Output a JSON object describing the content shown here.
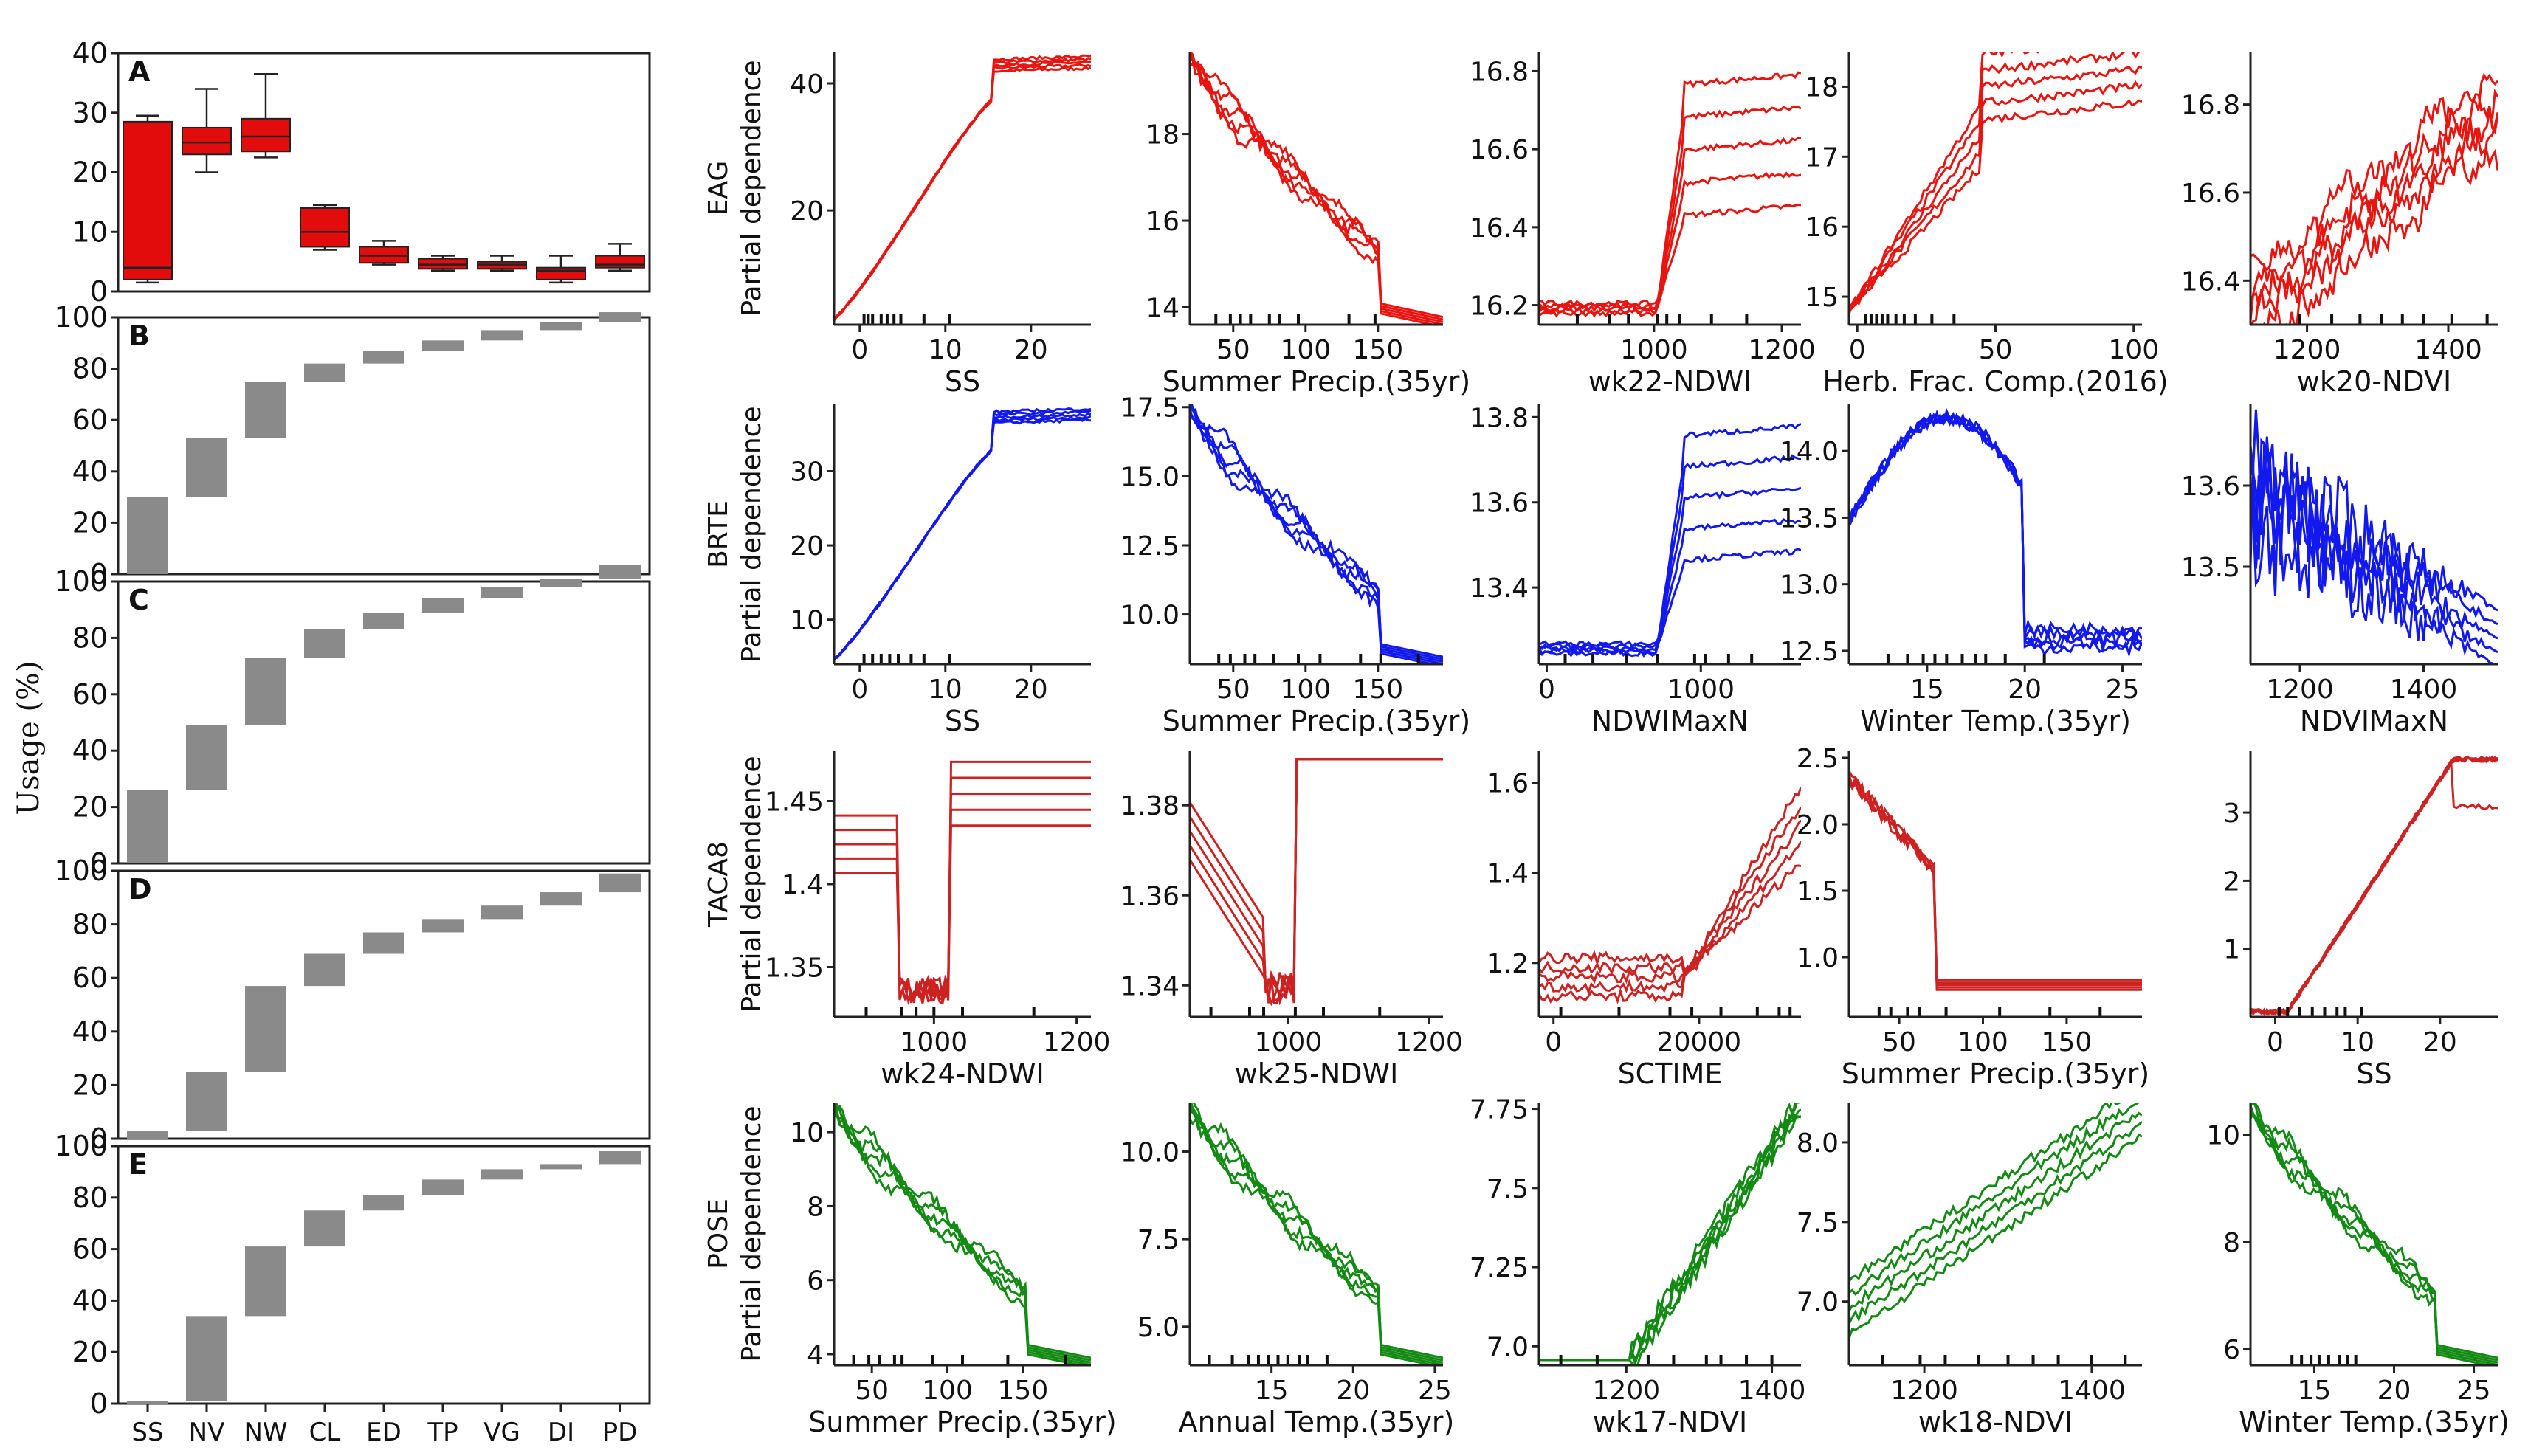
{
  "chart_data": {
    "left": {
      "ylabel": "Usage (%)",
      "categories": [
        "SS",
        "NV",
        "NW",
        "CL",
        "ED",
        "TP",
        "VG",
        "DI",
        "PD"
      ],
      "panelA": {
        "label": "A",
        "type": "box",
        "ylim": [
          0,
          40
        ],
        "yticks": [
          "0",
          "10",
          "20",
          "30",
          "40"
        ],
        "boxes": [
          {
            "cat": "SS",
            "wlo": 1.5,
            "q1": 2,
            "med": 4,
            "q3": 28.5,
            "whi": 29.5
          },
          {
            "cat": "NV",
            "wlo": 20,
            "q1": 23,
            "med": 25,
            "q3": 27.5,
            "whi": 34
          },
          {
            "cat": "NW",
            "wlo": 22.5,
            "q1": 23.5,
            "med": 26,
            "q3": 29,
            "whi": 36.5
          },
          {
            "cat": "CL",
            "wlo": 7,
            "q1": 7.5,
            "med": 10,
            "q3": 14,
            "whi": 14.5
          },
          {
            "cat": "ED",
            "wlo": 4.5,
            "q1": 4.8,
            "med": 6,
            "q3": 7.5,
            "whi": 8.5
          },
          {
            "cat": "TP",
            "wlo": 3.5,
            "q1": 3.8,
            "med": 4.5,
            "q3": 5.5,
            "whi": 6
          },
          {
            "cat": "VG",
            "wlo": 3.5,
            "q1": 3.8,
            "med": 4.5,
            "q3": 5,
            "whi": 6
          },
          {
            "cat": "DI",
            "wlo": 1.5,
            "q1": 2,
            "med": 3.5,
            "q3": 4,
            "whi": 6
          },
          {
            "cat": "PD",
            "wlo": 3.5,
            "q1": 4,
            "med": 4.5,
            "q3": 6,
            "whi": 8
          }
        ]
      },
      "waterfalls": [
        {
          "label": "B",
          "ylim": [
            0,
            100
          ],
          "yticks": [
            "0",
            "20",
            "40",
            "60",
            "80",
            "100"
          ],
          "values": [
            30,
            23,
            22,
            7,
            5,
            4,
            4,
            3,
            4
          ]
        },
        {
          "label": "C",
          "ylim": [
            0,
            100
          ],
          "yticks": [
            "0",
            "20",
            "40",
            "60",
            "80",
            "100"
          ],
          "values": [
            26,
            23,
            24,
            10,
            6,
            5,
            4,
            3,
            5
          ]
        },
        {
          "label": "D",
          "ylim": [
            0,
            100
          ],
          "yticks": [
            "0",
            "20",
            "40",
            "60",
            "80",
            "100"
          ],
          "values": [
            3,
            22,
            32,
            12,
            8,
            5,
            5,
            5,
            7
          ]
        },
        {
          "label": "E",
          "ylim": [
            0,
            100
          ],
          "yticks": [
            "0",
            "20",
            "40",
            "60",
            "80",
            "100"
          ],
          "values": [
            1,
            33,
            27,
            14,
            6,
            6,
            4,
            2,
            5
          ]
        }
      ]
    },
    "partial_dependence": {
      "rows": [
        {
          "species": "EAG",
          "ylabel": "Partial dependence",
          "color": "#e8140f"
        },
        {
          "species": "BRTE",
          "ylabel": "Partial dependence",
          "color": "#1219ee"
        },
        {
          "species": "TACA8",
          "ylabel": "Partial dependence",
          "color": "#cc2222"
        },
        {
          "species": "POSE",
          "ylabel": "Partial dependence",
          "color": "#138a13"
        }
      ],
      "panels": [
        [
          {
            "xlabel": "SS",
            "xlim": [
              -3,
              27
            ],
            "xticks": [
              0,
              10,
              20
            ],
            "ylim": [
              2,
              45
            ],
            "yticks": [
              20,
              40
            ],
            "shape": "up_smooth",
            "rug": [
              0.5,
              1,
              1.5,
              2.5,
              3.2,
              4,
              4.8,
              7.5,
              10.5
            ]
          },
          {
            "xlabel": "Summer Precip.(35yr)",
            "xlim": [
              20,
              195
            ],
            "xticks": [
              50,
              100,
              150
            ],
            "ylim": [
              13.6,
              19.9
            ],
            "yticks": [
              14,
              16,
              18
            ],
            "shape": "down_step",
            "rug": [
              38,
              48,
              55,
              62,
              75,
              82,
              95,
              130,
              148
            ]
          },
          {
            "xlabel": "wk22-NDWI",
            "xlim": [
              820,
              1230
            ],
            "xticks": [
              1000,
              1200
            ],
            "ylim": [
              16.15,
              16.85
            ],
            "yticks": [
              16.2,
              16.4,
              16.6,
              16.8
            ],
            "shape": "jump_split",
            "rug": [
              880,
              930,
              960,
              1005,
              1020,
              1040,
              1090,
              1145
            ]
          },
          {
            "xlabel": "Herb. Frac. Comp.(2016)",
            "xlim": [
              -3,
              103
            ],
            "xticks": [
              0,
              50,
              100
            ],
            "ylim": [
              14.6,
              18.5
            ],
            "yticks": [
              15,
              16,
              17,
              18
            ],
            "shape": "up_fan",
            "rug": [
              3,
              5,
              7,
              9,
              11,
              14,
              17,
              21,
              27,
              35
            ]
          },
          {
            "xlabel": "wk20-NDVI",
            "xlim": [
              1120,
              1470
            ],
            "xticks": [
              1200,
              1400
            ],
            "ylim": [
              16.3,
              16.92
            ],
            "yticks": [
              16.4,
              16.6,
              16.8
            ],
            "shape": "up_noisy",
            "rug": [
              1190,
              1235,
              1275,
              1305,
              1335,
              1365,
              1405,
              1455
            ]
          }
        ],
        [
          {
            "xlabel": "SS",
            "xlim": [
              -3,
              27
            ],
            "xticks": [
              0,
              10,
              20
            ],
            "ylim": [
              4,
              39
            ],
            "yticks": [
              10,
              20,
              30
            ],
            "shape": "up_smooth",
            "rug": [
              0.5,
              1.5,
              2.5,
              3.5,
              4.5,
              6,
              7.5,
              10.5
            ]
          },
          {
            "xlabel": "Summer Precip.(35yr)",
            "xlim": [
              20,
              195
            ],
            "xticks": [
              50,
              100,
              150
            ],
            "ylim": [
              8.2,
              17.6
            ],
            "yticks": [
              10.0,
              12.5,
              15.0,
              17.5
            ],
            "shape": "down_step",
            "rug": [
              40,
              48,
              58,
              65,
              78,
              95,
              110,
              138,
              152,
              178
            ]
          },
          {
            "xlabel": "NDWIMaxN",
            "xlim": [
              -50,
              1650
            ],
            "xticks": [
              0,
              1000
            ],
            "ylim": [
              13.22,
              13.83
            ],
            "yticks": [
              13.4,
              13.6,
              13.8
            ],
            "shape": "jump_split",
            "rug": [
              120,
              300,
              520,
              720,
              960,
              1030,
              1180,
              1330
            ]
          },
          {
            "xlabel": "Winter Temp.(35yr)",
            "xlim": [
              11,
              26
            ],
            "xticks": [
              15,
              20,
              25
            ],
            "ylim": [
              12.4,
              14.35
            ],
            "yticks": [
              12.5,
              13.0,
              13.5,
              14.0
            ],
            "shape": "hump",
            "rug": [
              13,
              14,
              14.8,
              15.4,
              16,
              16.8,
              17.5,
              18,
              19,
              21
            ]
          },
          {
            "xlabel": "NDVIMaxN",
            "xlim": [
              1120,
              1520
            ],
            "xticks": [
              1200,
              1400
            ],
            "ylim": [
              13.38,
              13.7
            ],
            "yticks": [
              13.5,
              13.6
            ],
            "shape": "spiky_down",
            "rug": []
          }
        ],
        [
          {
            "xlabel": "wk24-NDWI",
            "xlim": [
              860,
              1220
            ],
            "xticks": [
              1000,
              1200
            ],
            "ylim": [
              1.32,
              1.48
            ],
            "yticks": [
              1.35,
              1.4,
              1.45
            ],
            "shape": "dip_rise",
            "rug": [
              905,
              955,
              975,
              1000,
              1040,
              1140
            ]
          },
          {
            "xlabel": "wk25-NDWI",
            "xlim": [
              860,
              1220
            ],
            "xticks": [
              1000,
              1200
            ],
            "ylim": [
              1.333,
              1.392
            ],
            "yticks": [
              1.34,
              1.36,
              1.38
            ],
            "shape": "dip_rise2",
            "rug": [
              890,
              945,
              965,
              1010,
              1050,
              1130
            ]
          },
          {
            "xlabel": "SCTIME",
            "xlim": [
              -2000,
              34000
            ],
            "xticks": [
              0,
              20000
            ],
            "ylim": [
              1.08,
              1.67
            ],
            "yticks": [
              1.2,
              1.4,
              1.6
            ],
            "shape": "up_late",
            "rug": [
              1000,
              9000,
              16000,
              19000,
              23000,
              28000,
              31000,
              32500
            ]
          },
          {
            "xlabel": "Summer Precip.(35yr)",
            "xlim": [
              20,
              195
            ],
            "xticks": [
              50,
              100,
              150
            ],
            "ylim": [
              0.55,
              2.55
            ],
            "yticks": [
              1.0,
              1.5,
              2.0,
              2.5
            ],
            "shape": "down_cliff",
            "rug": [
              38,
              45,
              55,
              62,
              78,
              110,
              140,
              170
            ]
          },
          {
            "xlabel": "SS",
            "xlim": [
              -3,
              27
            ],
            "xticks": [
              0,
              10,
              20
            ],
            "ylim": [
              0,
              3.9
            ],
            "yticks": [
              1,
              2,
              3
            ],
            "shape": "up_plateau",
            "rug": [
              0.5,
              1.5,
              3,
              4.5,
              6,
              7.5,
              8.5,
              10.5
            ]
          }
        ],
        [
          {
            "xlabel": "Summer Precip.(35yr)",
            "xlim": [
              25,
              195
            ],
            "xticks": [
              50,
              100,
              150
            ],
            "ylim": [
              3.7,
              10.8
            ],
            "yticks": [
              4,
              6,
              8,
              10
            ],
            "shape": "down_step",
            "rug": [
              38,
              48,
              55,
              65,
              70,
              90,
              110,
              140,
              178
            ]
          },
          {
            "xlabel": "Annual Temp.(35yr)",
            "xlim": [
              10,
              25.5
            ],
            "xticks": [
              15,
              20,
              25
            ],
            "ylim": [
              3.9,
              11.4
            ],
            "yticks": [
              5.0,
              7.5,
              10.0
            ],
            "shape": "down_step",
            "rug": [
              11.2,
              12.6,
              13.6,
              14.2,
              14.8,
              15.4,
              16,
              16.7,
              17.2,
              18.4
            ]
          },
          {
            "xlabel": "wk17-NDVI",
            "xlim": [
              1080,
              1440
            ],
            "xticks": [
              1200,
              1400
            ],
            "ylim": [
              6.94,
              7.77
            ],
            "yticks": [
              7.0,
              7.25,
              7.5,
              7.75
            ],
            "shape": "up_late2",
            "rug": [
              1110,
              1160,
              1230,
              1265,
              1310,
              1330,
              1365,
              1400
            ]
          },
          {
            "xlabel": "wk18-NDVI",
            "xlim": [
              1110,
              1460
            ],
            "xticks": [
              1200,
              1400
            ],
            "ylim": [
              6.6,
              8.25
            ],
            "yticks": [
              7.0,
              7.5,
              8.0
            ],
            "shape": "up_fan2",
            "rug": [
              1150,
              1195,
              1225,
              1265,
              1300,
              1330,
              1360,
              1400,
              1440
            ]
          },
          {
            "xlabel": "Winter Temp.(35yr)",
            "xlim": [
              11,
              26.5
            ],
            "xticks": [
              15,
              20,
              25
            ],
            "ylim": [
              5.7,
              10.6
            ],
            "yticks": [
              6,
              8,
              10
            ],
            "shape": "down_step",
            "rug": [
              13.6,
              14.2,
              14.8,
              15.3,
              15.9,
              16.6,
              17.1,
              17.6
            ]
          }
        ]
      ]
    }
  }
}
